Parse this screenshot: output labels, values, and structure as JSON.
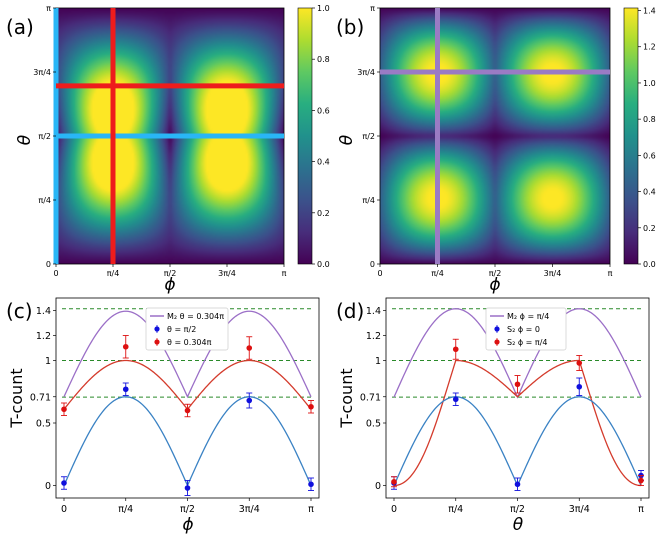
{
  "panels": {
    "a": {
      "label": "(a)"
    },
    "b": {
      "label": "(b)"
    },
    "c": {
      "label": "(c)"
    },
    "d": {
      "label": "(d)"
    }
  },
  "heatmaps": {
    "a": {
      "xlabel": "ϕ",
      "ylabel": "θ",
      "xticks": [
        "0",
        "π/4",
        "π/2",
        "3π/4",
        "π"
      ],
      "yticks": [
        "0",
        "π/4",
        "π/2",
        "3π/4",
        "π"
      ],
      "colorbar_ticks": [
        "0.0",
        "0.2",
        "0.4",
        "0.6",
        "0.8",
        "1.0"
      ],
      "colorbar_range": [
        0,
        1.0
      ],
      "overlay_lines": [
        {
          "orientation": "vertical",
          "at": 0,
          "color": "#29b6f6"
        },
        {
          "orientation": "horizontal",
          "at": 0.5,
          "color": "#29b6f6"
        },
        {
          "orientation": "vertical",
          "at": 0.25,
          "color": "#ee1c1c"
        },
        {
          "orientation": "horizontal",
          "at": 0.696,
          "color": "#ee1c1c"
        }
      ]
    },
    "b": {
      "xlabel": "ϕ",
      "ylabel": "θ",
      "xticks": [
        "0",
        "π/4",
        "π/2",
        "3π/4",
        "π"
      ],
      "yticks": [
        "0",
        "π/4",
        "π/2",
        "3π/4",
        "π"
      ],
      "colorbar_ticks": [
        "0.0",
        "0.2",
        "0.4",
        "0.6",
        "0.8",
        "1.0",
        "1.2",
        "1.4"
      ],
      "colorbar_range": [
        0,
        1.414
      ],
      "overlay_lines": [
        {
          "orientation": "vertical",
          "at": 0.25,
          "color": "#9a7bc4"
        },
        {
          "orientation": "horizontal",
          "at": 0.75,
          "color": "#9a7bc4"
        }
      ]
    }
  },
  "chart_data": [
    {
      "type": "heatmap",
      "panel": "a",
      "xlabel": "ϕ",
      "ylabel": "θ",
      "xlim": [
        0,
        3.1416
      ],
      "ylim": [
        0,
        3.1416
      ],
      "colorbar_range": [
        0,
        1.0
      ],
      "colormap": "viridis"
    },
    {
      "type": "heatmap",
      "panel": "b",
      "xlabel": "ϕ",
      "ylabel": "θ",
      "xlim": [
        0,
        3.1416
      ],
      "ylim": [
        0,
        3.1416
      ],
      "colorbar_range": [
        0,
        1.414
      ],
      "colormap": "viridis"
    },
    {
      "type": "line",
      "panel": "c",
      "xlabel": "ϕ",
      "ylabel": "T-count",
      "xlim": [
        0,
        3.1416
      ],
      "ylim": [
        -0.1,
        1.5
      ],
      "xticks": [
        "0",
        "π/4",
        "π/2",
        "3π/4",
        "π"
      ],
      "yticks": [
        "0",
        "0.5",
        "0.71",
        "1",
        "1.2",
        "1.4"
      ],
      "reference_lines": [
        1.414,
        1.0,
        0.707
      ],
      "curves": [
        {
          "name": "M₂ θ = 0.304π",
          "color": "#9b6fc7"
        },
        {
          "name": "",
          "color": "#d43b2c"
        },
        {
          "name": "",
          "color": "#3a82c4"
        }
      ],
      "series": [
        {
          "name": "θ = π/2",
          "color": "#1010dd",
          "x": [
            0,
            0.7854,
            1.5708,
            2.3562,
            3.1416
          ],
          "values": [
            0.02,
            0.77,
            -0.02,
            0.68,
            0.01
          ],
          "errors": [
            0.05,
            0.05,
            0.06,
            0.06,
            0.05
          ]
        },
        {
          "name": "θ = 0.304π",
          "color": "#dd1010",
          "x": [
            0,
            0.7854,
            1.5708,
            2.3562,
            3.1416
          ],
          "values": [
            0.61,
            1.11,
            0.6,
            1.1,
            0.63
          ],
          "errors": [
            0.05,
            0.09,
            0.05,
            0.09,
            0.05
          ]
        }
      ]
    },
    {
      "type": "line",
      "panel": "d",
      "xlabel": "θ",
      "ylabel": "T-count",
      "xlim": [
        0,
        3.1416
      ],
      "ylim": [
        -0.1,
        1.5
      ],
      "xticks": [
        "0",
        "π/4",
        "π/2",
        "3π/4",
        "π"
      ],
      "yticks": [
        "0",
        "0.5",
        "0.71",
        "1",
        "1.2",
        "1.4"
      ],
      "reference_lines": [
        1.414,
        1.0,
        0.707
      ],
      "curves": [
        {
          "name": "M₂ ϕ = π/4",
          "color": "#9b6fc7"
        },
        {
          "name": "",
          "color": "#d43b2c"
        },
        {
          "name": "",
          "color": "#3a82c4"
        }
      ],
      "series": [
        {
          "name": "S₂ ϕ = 0",
          "color": "#1010dd",
          "x": [
            0,
            0.7854,
            1.5708,
            2.3562,
            3.1416
          ],
          "values": [
            0.02,
            0.69,
            0.01,
            0.79,
            0.08
          ],
          "errors": [
            0.05,
            0.05,
            0.05,
            0.07,
            0.04
          ]
        },
        {
          "name": "S₂ ϕ = π/4",
          "color": "#dd1010",
          "x": [
            0,
            0.7854,
            1.5708,
            2.3562,
            3.1416
          ],
          "values": [
            0.03,
            1.09,
            0.81,
            0.98,
            0.04
          ],
          "errors": [
            0.04,
            0.08,
            0.07,
            0.06,
            0.04
          ]
        }
      ]
    }
  ],
  "legends": {
    "c": [
      "M₂ θ = 0.304π",
      "θ = π/2",
      "θ = 0.304π"
    ],
    "d": [
      "M₂ ϕ = π/4",
      "S₂ ϕ = 0",
      "S₂ ϕ = π/4"
    ]
  }
}
